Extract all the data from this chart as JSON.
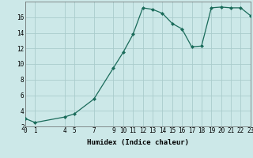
{
  "title": "",
  "xlabel": "Humidex (Indice chaleur)",
  "background_color": "#cce8e8",
  "grid_color": "#aacccc",
  "line_color": "#1a6b5a",
  "marker_color": "#1a6b5a",
  "x_values": [
    0,
    1,
    4,
    5,
    7,
    9,
    10,
    11,
    12,
    13,
    14,
    15,
    16,
    17,
    18,
    19,
    20,
    21,
    22,
    23
  ],
  "y_values": [
    3,
    2.5,
    3.2,
    3.6,
    5.5,
    9.5,
    11.5,
    13.8,
    17.2,
    17.0,
    16.5,
    15.2,
    14.5,
    12.2,
    12.3,
    17.2,
    17.3,
    17.2,
    17.2,
    16.2
  ],
  "xlim": [
    0,
    23
  ],
  "ylim": [
    2,
    18
  ],
  "yticks": [
    2,
    4,
    6,
    8,
    10,
    12,
    14,
    16
  ],
  "xticks": [
    0,
    1,
    4,
    5,
    7,
    9,
    10,
    11,
    12,
    13,
    14,
    15,
    16,
    17,
    18,
    19,
    20,
    21,
    22,
    23
  ],
  "tick_fontsize": 5.5,
  "xlabel_fontsize": 6.5,
  "spine_color": "#666666"
}
